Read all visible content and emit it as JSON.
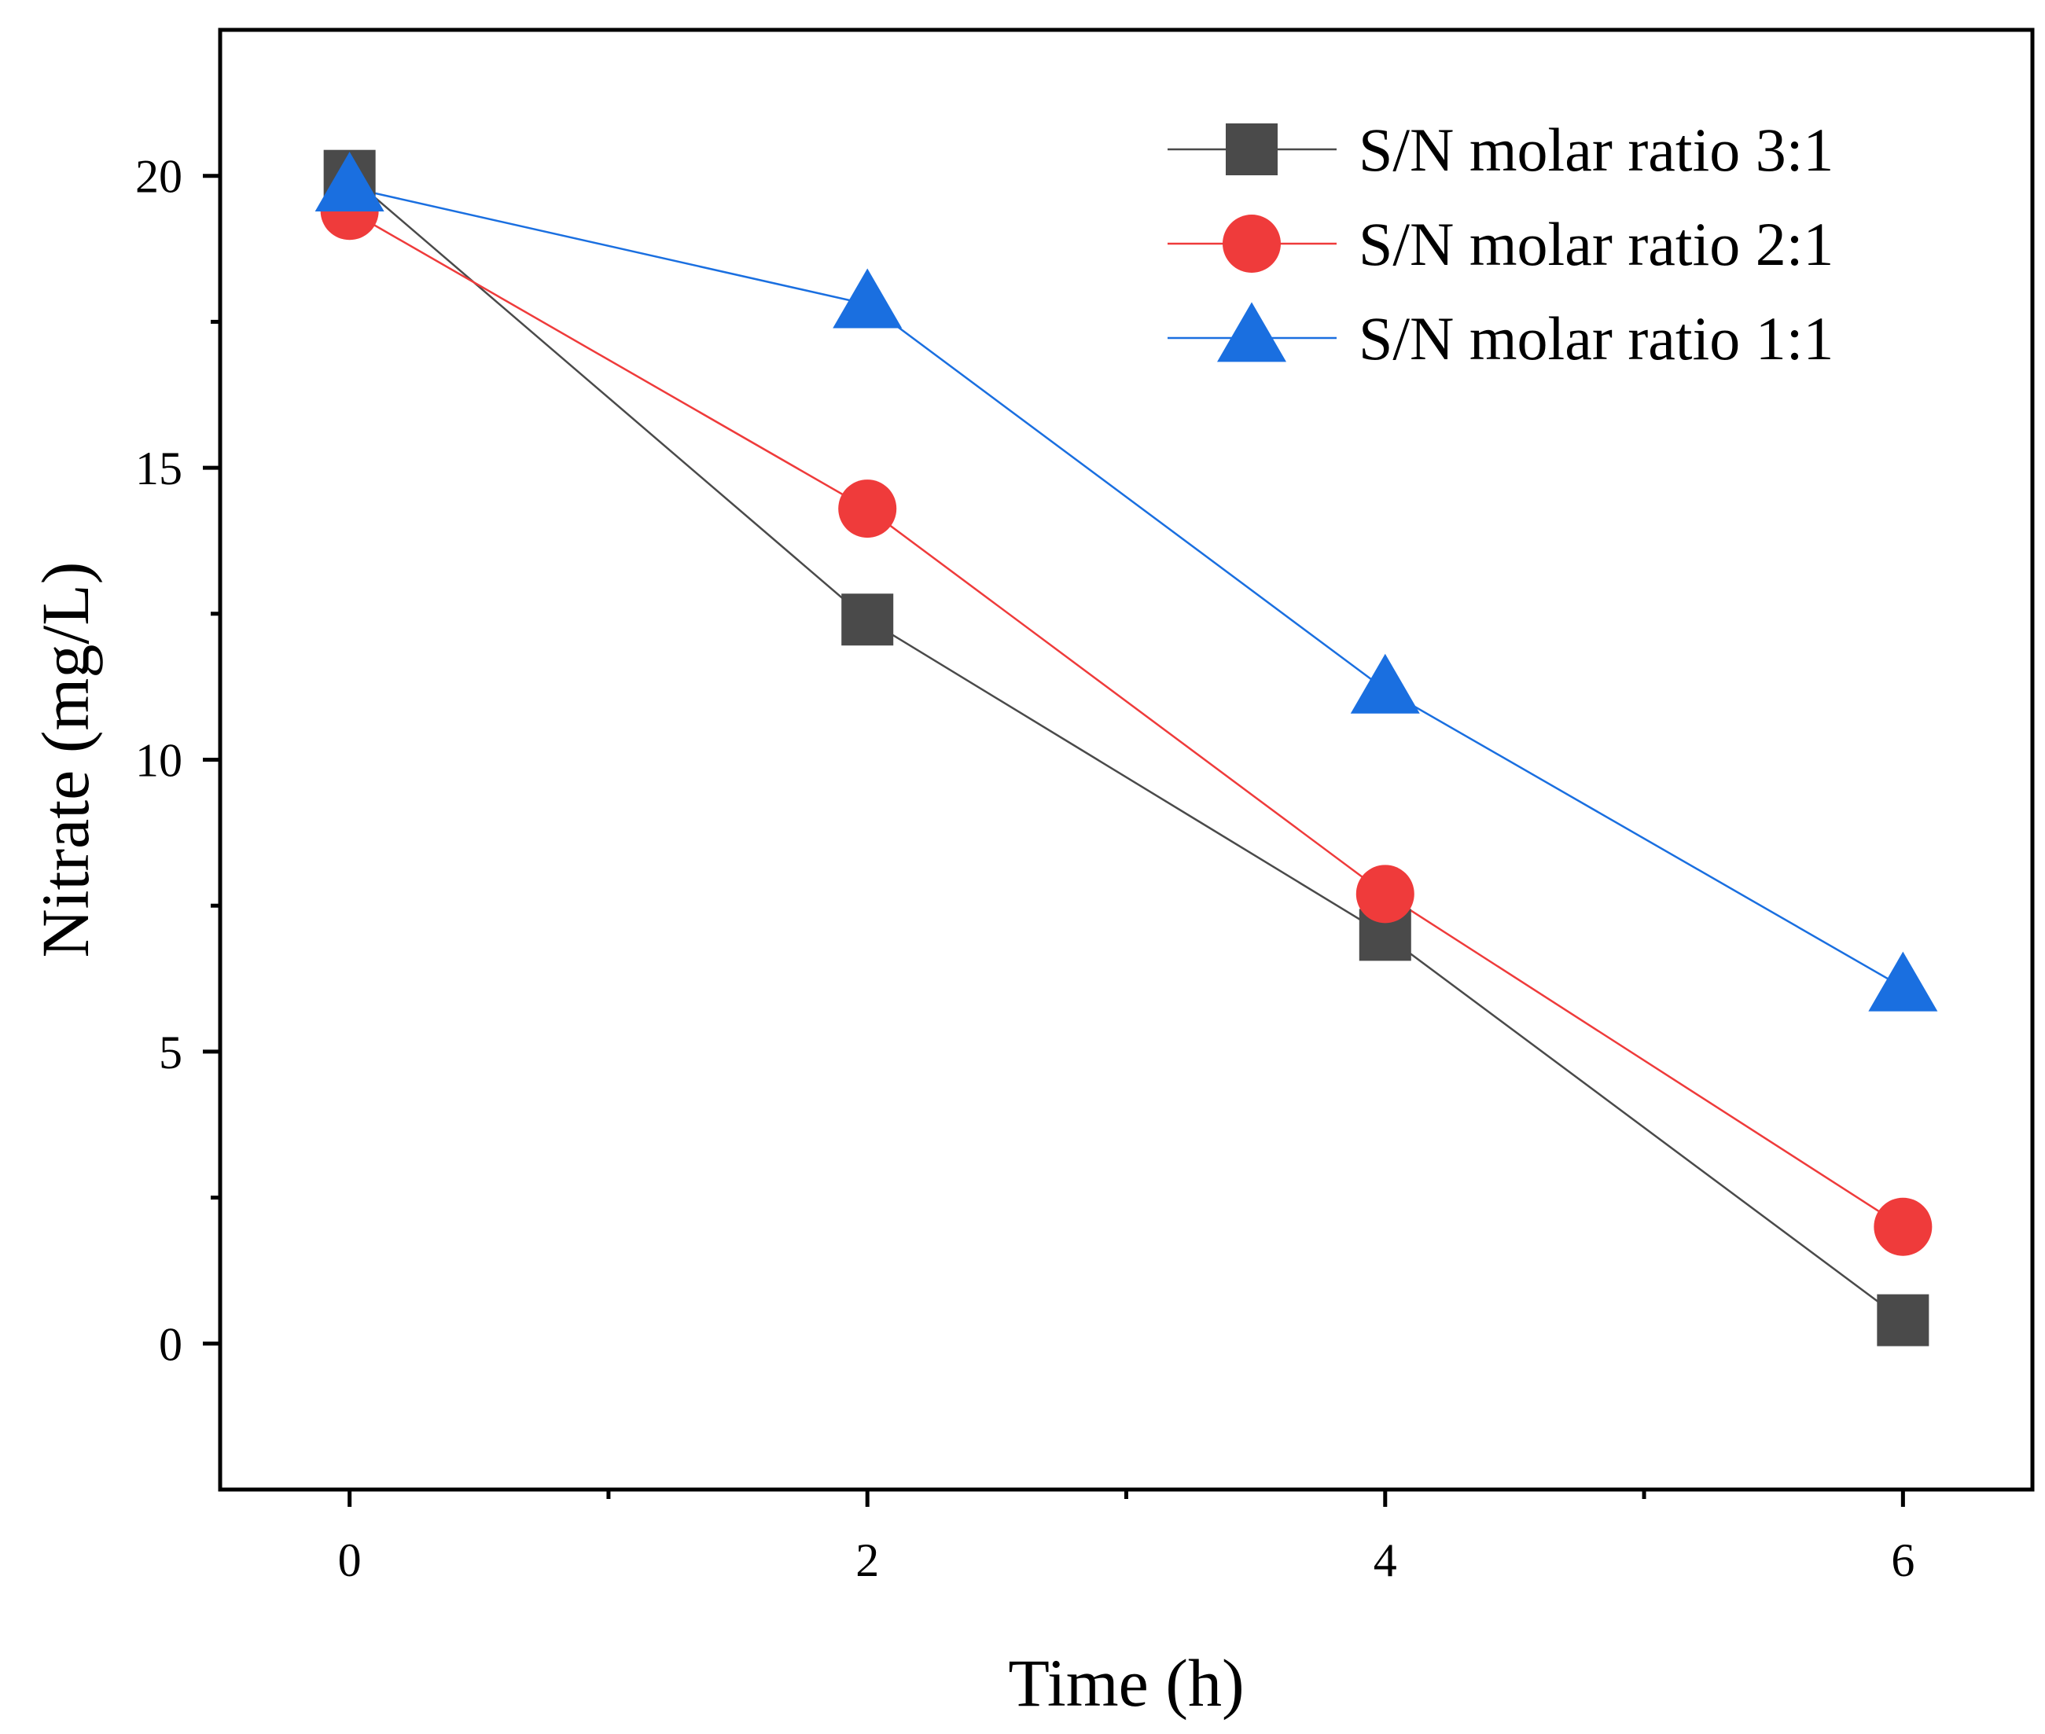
{
  "chart_data": {
    "type": "line",
    "title": "",
    "xlabel": "Time (h)",
    "ylabel": "Nitrate (mg/L)",
    "xlim": [
      -0.5,
      6.5
    ],
    "ylim": [
      -2.5,
      22.5
    ],
    "x_ticks": [
      0,
      2,
      4,
      6
    ],
    "x_tick_labels": [
      "0",
      "2",
      "4",
      "6"
    ],
    "x_minor_ticks": [
      1,
      3,
      5
    ],
    "y_ticks": [
      0,
      5,
      10,
      15,
      20
    ],
    "y_tick_labels": [
      "0",
      "5",
      "10",
      "15",
      "20"
    ],
    "grid": false,
    "legend_position": "top-right",
    "x": [
      0,
      2,
      4,
      6
    ],
    "series": [
      {
        "name": "S/N molar ratio 3:1",
        "marker": "square",
        "color": "#4a4a4a",
        "values": [
          20.0,
          12.4,
          7.0,
          0.4
        ]
      },
      {
        "name": "S/N molar ratio 2:1",
        "marker": "circle",
        "color": "#ef3b3b",
        "values": [
          19.4,
          14.3,
          7.7,
          2.0
        ]
      },
      {
        "name": "S/N molar ratio 1:1",
        "marker": "triangle",
        "color": "#1a6fe0",
        "values": [
          19.8,
          17.8,
          11.2,
          6.1
        ]
      }
    ]
  }
}
